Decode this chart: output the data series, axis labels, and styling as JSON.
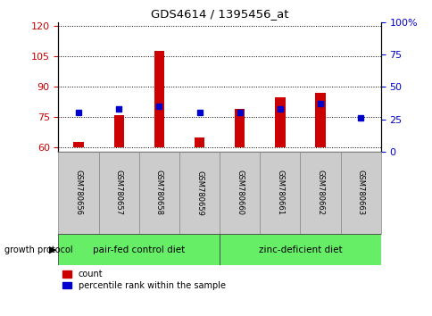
{
  "title": "GDS4614 / 1395456_at",
  "samples": [
    "GSM780656",
    "GSM780657",
    "GSM780658",
    "GSM780659",
    "GSM780660",
    "GSM780661",
    "GSM780662",
    "GSM780663"
  ],
  "red_counts": [
    63,
    76,
    108,
    65,
    79,
    85,
    87,
    60
  ],
  "blue_percentiles": [
    30,
    33,
    35,
    30,
    30,
    33,
    37,
    26
  ],
  "ylim_left": [
    58,
    122
  ],
  "ylim_right": [
    0,
    100
  ],
  "yticks_left": [
    60,
    75,
    90,
    105,
    120
  ],
  "yticks_right": [
    0,
    25,
    50,
    75,
    100
  ],
  "bar_bottom": 60,
  "group1_label": "pair-fed control diet",
  "group2_label": "zinc-deficient diet",
  "group1_indices": [
    0,
    1,
    2,
    3
  ],
  "group2_indices": [
    4,
    5,
    6,
    7
  ],
  "growth_protocol_label": "growth protocol",
  "legend_count": "count",
  "legend_percentile": "percentile rank within the sample",
  "red_color": "#cc0000",
  "blue_color": "#0000cc",
  "group_bg_color": "#66ee66",
  "sample_bg_color": "#cccccc",
  "bar_width": 0.25
}
